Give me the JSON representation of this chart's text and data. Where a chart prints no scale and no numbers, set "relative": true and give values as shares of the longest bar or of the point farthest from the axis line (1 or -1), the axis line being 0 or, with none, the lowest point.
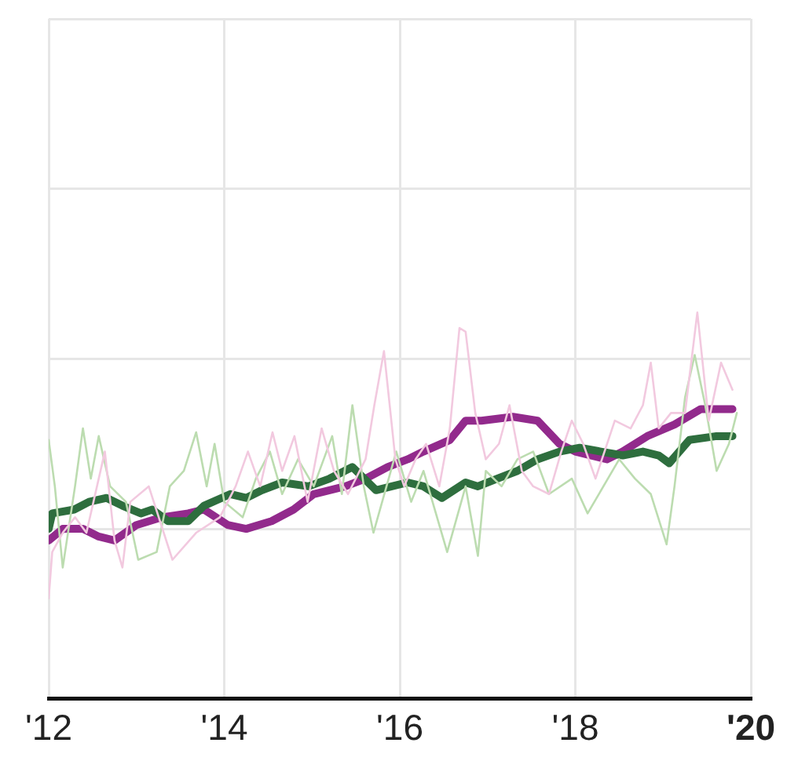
{
  "chart_data": {
    "type": "line",
    "relative": true,
    "grid": true,
    "legend": false,
    "tick_labels": "x",
    "marker": "none",
    "line_style": "solid",
    "xlim": [
      2012,
      2020
    ],
    "xticks": [
      {
        "value": 2012,
        "label": "'12"
      },
      {
        "value": 2014,
        "label": "'14"
      },
      {
        "value": 2016,
        "label": "'16"
      },
      {
        "value": 2018,
        "label": "'18"
      },
      {
        "value": 2020,
        "label": "'20"
      }
    ],
    "series": [
      {
        "color": "#f2c9df",
        "x": [
          2012,
          2012.04,
          2012.16,
          2012.3,
          2012.43,
          2012.64,
          2012.75,
          2012.84,
          2012.93,
          2013.14,
          2013.41,
          2013.68,
          2013.95,
          2014.13,
          2014.27,
          2014.41,
          2014.55,
          2014.66,
          2014.8,
          2014.95,
          2015.11,
          2015.25,
          2015.41,
          2015.61,
          2015.71,
          2015.82,
          2015.95,
          2016.05,
          2016.18,
          2016.3,
          2016.45,
          2016.57,
          2016.68,
          2016.75,
          2016.86,
          2016.98,
          2017.13,
          2017.25,
          2017.39,
          2017.52,
          2017.7,
          2017.84,
          2017.96,
          2018.09,
          2018.23,
          2018.45,
          2018.63,
          2018.77,
          2018.86,
          2018.95,
          2019.09,
          2019.25,
          2019.39,
          2019.52,
          2019.66,
          2019.79
        ],
        "values": [
          0.26,
          0.38,
          0.43,
          0.47,
          0.43,
          0.64,
          0.41,
          0.34,
          0.51,
          0.55,
          0.36,
          0.43,
          0.47,
          0.55,
          0.64,
          0.55,
          0.69,
          0.59,
          0.68,
          0.51,
          0.7,
          0.59,
          0.53,
          0.62,
          0.76,
          0.9,
          0.62,
          0.55,
          0.62,
          0.66,
          0.55,
          0.7,
          0.96,
          0.95,
          0.74,
          0.62,
          0.66,
          0.76,
          0.59,
          0.55,
          0.53,
          0.64,
          0.72,
          0.66,
          0.57,
          0.72,
          0.7,
          0.76,
          0.87,
          0.7,
          0.74,
          0.74,
          1,
          0.72,
          0.87,
          0.8
        ]
      },
      {
        "color": "#bcdcb0",
        "x": [
          2012,
          2012.07,
          2012.16,
          2012.3,
          2012.39,
          2012.48,
          2012.57,
          2012.7,
          2012.88,
          2013.02,
          2013.23,
          2013.38,
          2013.54,
          2013.68,
          2013.8,
          2013.89,
          2014,
          2014.21,
          2014.36,
          2014.52,
          2014.66,
          2014.84,
          2015.02,
          2015.23,
          2015.34,
          2015.46,
          2015.59,
          2015.7,
          2015.96,
          2016.13,
          2016.27,
          2016.54,
          2016.75,
          2016.89,
          2016.98,
          2017.16,
          2017.34,
          2017.52,
          2017.7,
          2017.96,
          2018.14,
          2018.32,
          2018.5,
          2018.68,
          2018.86,
          2019.04,
          2019.13,
          2019.25,
          2019.36,
          2019.48,
          2019.61,
          2019.75,
          2019.84
        ],
        "values": [
          0.67,
          0.55,
          0.34,
          0.55,
          0.7,
          0.57,
          0.68,
          0.55,
          0.51,
          0.36,
          0.38,
          0.55,
          0.59,
          0.69,
          0.55,
          0.66,
          0.51,
          0.47,
          0.57,
          0.64,
          0.53,
          0.62,
          0.55,
          0.68,
          0.53,
          0.76,
          0.55,
          0.43,
          0.64,
          0.51,
          0.59,
          0.38,
          0.55,
          0.37,
          0.59,
          0.55,
          0.62,
          0.64,
          0.53,
          0.57,
          0.48,
          0.55,
          0.62,
          0.57,
          0.53,
          0.4,
          0.55,
          0.78,
          0.89,
          0.76,
          0.59,
          0.66,
          0.74
        ]
      },
      {
        "color": "#2e6e3e",
        "x": [
          2012,
          2012.04,
          2012.29,
          2012.46,
          2012.66,
          2012.84,
          2013.05,
          2013.18,
          2013.36,
          2013.59,
          2013.77,
          2014.07,
          2014.25,
          2014.43,
          2014.66,
          2014.96,
          2015.2,
          2015.46,
          2015.73,
          2016.09,
          2016.27,
          2016.48,
          2016.75,
          2016.89,
          2017.11,
          2017.34,
          2017.57,
          2017.82,
          2018.05,
          2018.29,
          2018.54,
          2018.77,
          2018.95,
          2019.07,
          2019.3,
          2019.61,
          2019.79
        ],
        "values": [
          0.44,
          0.48,
          0.49,
          0.51,
          0.52,
          0.5,
          0.48,
          0.49,
          0.46,
          0.46,
          0.5,
          0.53,
          0.52,
          0.54,
          0.56,
          0.55,
          0.57,
          0.6,
          0.54,
          0.56,
          0.55,
          0.52,
          0.56,
          0.55,
          0.57,
          0.59,
          0.62,
          0.64,
          0.65,
          0.64,
          0.63,
          0.64,
          0.63,
          0.61,
          0.67,
          0.68,
          0.68
        ]
      },
      {
        "color": "#922a8c",
        "x": [
          2012,
          2012.16,
          2012.39,
          2012.57,
          2012.75,
          2013,
          2013.29,
          2013.59,
          2013.77,
          2014.04,
          2014.25,
          2014.54,
          2014.79,
          2015.02,
          2015.38,
          2015.61,
          2015.86,
          2016.09,
          2016.27,
          2016.57,
          2016.75,
          2016.93,
          2017.29,
          2017.57,
          2017.82,
          2018,
          2018.36,
          2018.54,
          2018.82,
          2019.13,
          2019.43,
          2019.79
        ],
        "values": [
          0.41,
          0.44,
          0.44,
          0.42,
          0.41,
          0.45,
          0.47,
          0.48,
          0.49,
          0.45,
          0.44,
          0.46,
          0.49,
          0.53,
          0.55,
          0.57,
          0.6,
          0.62,
          0.64,
          0.67,
          0.72,
          0.72,
          0.73,
          0.72,
          0.66,
          0.64,
          0.62,
          0.64,
          0.68,
          0.71,
          0.75,
          0.75
        ]
      }
    ]
  }
}
